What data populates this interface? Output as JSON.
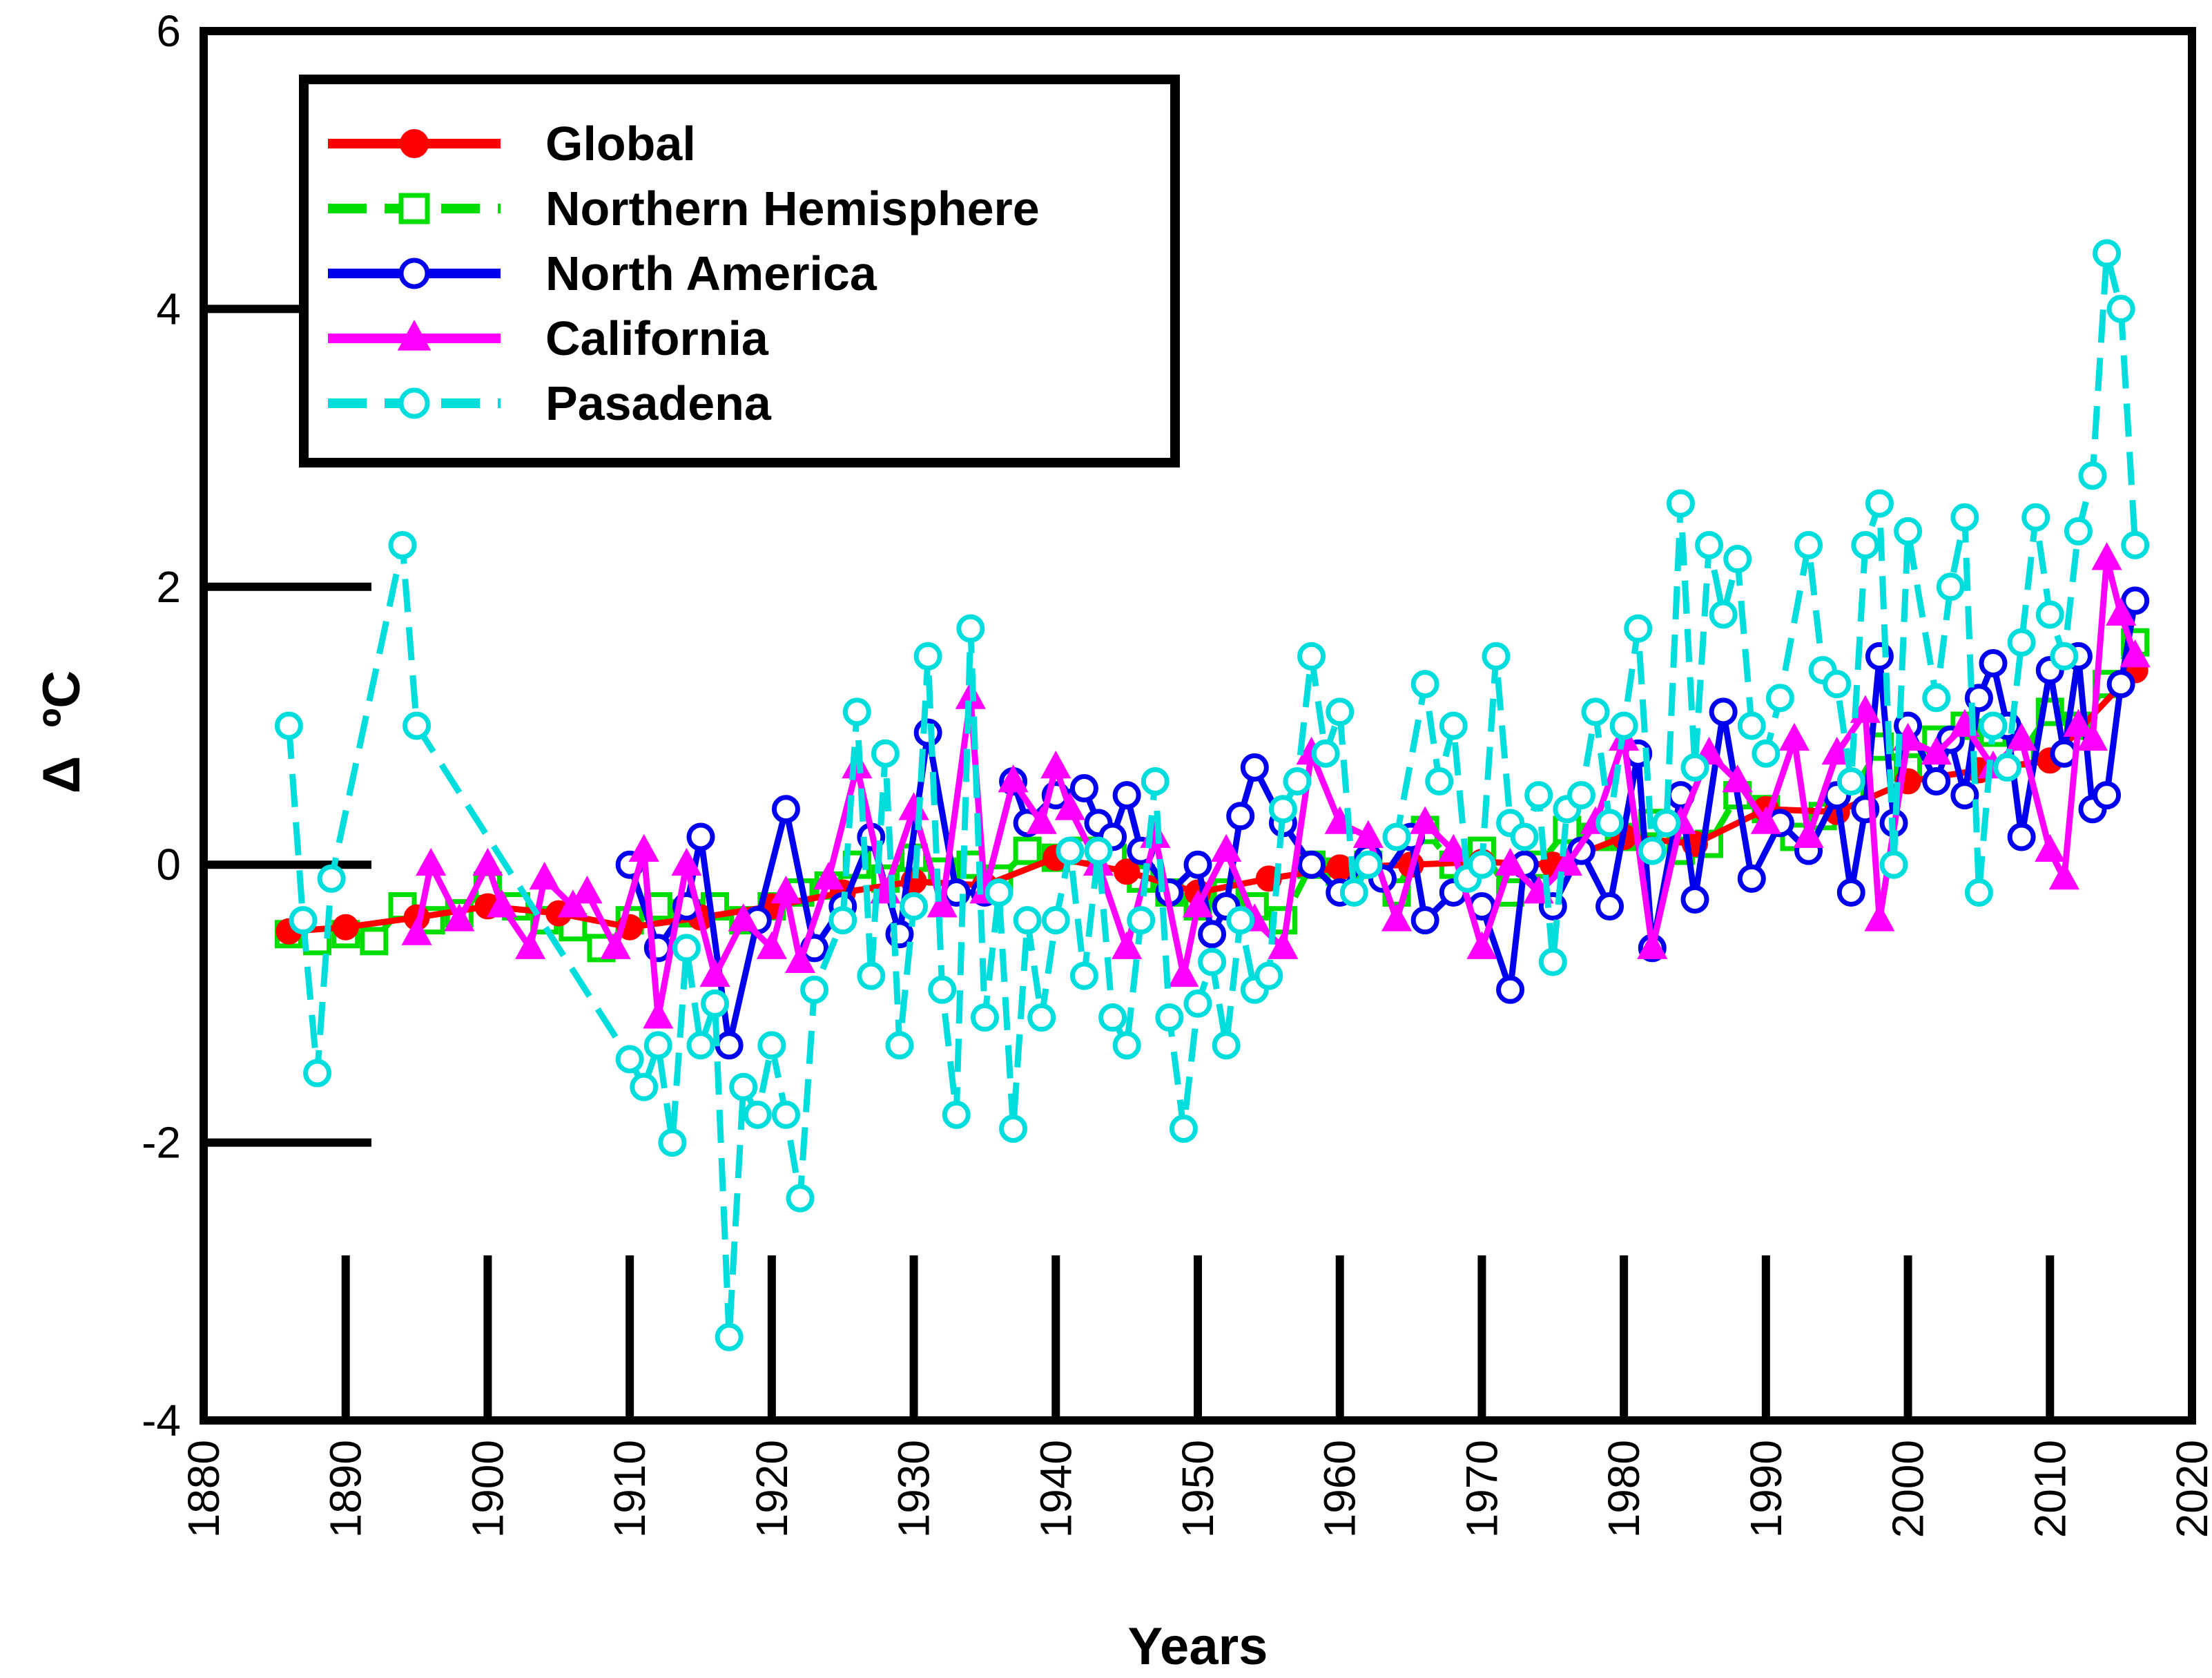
{
  "chart_data": {
    "type": "line",
    "title": "",
    "xlabel": "Years",
    "ylabel": "Δ ºC",
    "ylabel_main": "Δ",
    "ylabel_unit": "ºC",
    "xlim": [
      1880,
      2020
    ],
    "ylim": [
      -4,
      6
    ],
    "xticks": [
      1880,
      1890,
      1900,
      1910,
      1920,
      1930,
      1940,
      1950,
      1960,
      1970,
      1980,
      1990,
      2000,
      2010,
      2020
    ],
    "yticks": [
      -4,
      -2,
      0,
      2,
      4,
      6
    ],
    "grid": false,
    "legend_position": "top-left",
    "series": [
      {
        "name": "Global",
        "color": "#ff0000",
        "marker": "filled-circle",
        "dash": "solid",
        "x": [
          1886,
          1890,
          1895,
          1900,
          1905,
          1910,
          1915,
          1920,
          1925,
          1930,
          1935,
          1940,
          1945,
          1950,
          1955,
          1960,
          1965,
          1970,
          1975,
          1980,
          1985,
          1990,
          1995,
          2000,
          2005,
          2010,
          2016
        ],
        "y": [
          -0.48,
          -0.45,
          -0.38,
          -0.3,
          -0.35,
          -0.45,
          -0.38,
          -0.3,
          -0.2,
          -0.12,
          -0.15,
          0.05,
          -0.05,
          -0.2,
          -0.1,
          -0.02,
          0.0,
          0.02,
          0.0,
          0.2,
          0.15,
          0.4,
          0.38,
          0.6,
          0.68,
          0.75,
          1.4
        ]
      },
      {
        "name": "Northern Hemisphere",
        "color": "#00dd00",
        "marker": "open-square",
        "dash": "dashed",
        "x": [
          1886,
          1888,
          1890,
          1892,
          1894,
          1896,
          1898,
          1900,
          1902,
          1904,
          1906,
          1908,
          1910,
          1912,
          1914,
          1916,
          1918,
          1920,
          1922,
          1924,
          1926,
          1928,
          1930,
          1932,
          1934,
          1936,
          1938,
          1940,
          1942,
          1944,
          1946,
          1948,
          1950,
          1952,
          1954,
          1956,
          1958,
          1960,
          1962,
          1964,
          1966,
          1968,
          1970,
          1972,
          1974,
          1976,
          1978,
          1980,
          1982,
          1984,
          1986,
          1988,
          1990,
          1992,
          1994,
          1996,
          1998,
          2000,
          2002,
          2004,
          2006,
          2008,
          2010,
          2012,
          2014,
          2016
        ],
        "y": [
          -0.5,
          -0.55,
          -0.5,
          -0.55,
          -0.3,
          -0.4,
          -0.35,
          -0.15,
          -0.3,
          -0.4,
          -0.45,
          -0.6,
          -0.4,
          -0.3,
          -0.35,
          -0.3,
          -0.4,
          -0.3,
          -0.2,
          -0.15,
          0.0,
          -0.1,
          0.05,
          -0.05,
          0.0,
          -0.1,
          0.1,
          0.05,
          0.1,
          0.05,
          -0.1,
          -0.2,
          -0.3,
          -0.2,
          -0.3,
          -0.4,
          0.0,
          -0.05,
          0.0,
          -0.2,
          0.25,
          0.0,
          0.1,
          -0.2,
          0.0,
          0.25,
          0.2,
          0.2,
          0.3,
          0.1,
          0.15,
          0.5,
          0.4,
          0.2,
          0.35,
          0.5,
          0.85,
          0.7,
          0.9,
          1.0,
          0.95,
          0.8,
          1.1,
          1.0,
          1.3,
          1.6
        ]
      },
      {
        "name": "North America",
        "color": "#0000ee",
        "marker": "open-circle",
        "dash": "solid",
        "x": [
          1910,
          1912,
          1914,
          1915,
          1917,
          1919,
          1921,
          1923,
          1925,
          1927,
          1929,
          1931,
          1933,
          1935,
          1937,
          1938,
          1940,
          1942,
          1943,
          1944,
          1945,
          1946,
          1948,
          1950,
          1951,
          1952,
          1953,
          1954,
          1956,
          1958,
          1960,
          1962,
          1963,
          1965,
          1966,
          1968,
          1970,
          1972,
          1973,
          1975,
          1977,
          1979,
          1981,
          1982,
          1984,
          1985,
          1987,
          1989,
          1991,
          1993,
          1995,
          1996,
          1997,
          1998,
          1999,
          2000,
          2002,
          2003,
          2004,
          2005,
          2006,
          2007,
          2008,
          2010,
          2011,
          2012,
          2013,
          2014,
          2015,
          2016
        ],
        "y": [
          0.0,
          -0.6,
          -0.3,
          0.2,
          -1.3,
          -0.4,
          0.4,
          -0.6,
          -0.3,
          0.2,
          -0.5,
          0.95,
          -0.2,
          -0.2,
          0.6,
          0.3,
          0.5,
          0.55,
          0.3,
          0.2,
          0.5,
          0.1,
          -0.2,
          0.0,
          -0.5,
          -0.3,
          0.35,
          0.7,
          0.3,
          0.0,
          -0.2,
          0.05,
          -0.1,
          0.2,
          -0.4,
          -0.2,
          -0.3,
          -0.9,
          0.0,
          -0.3,
          0.1,
          -0.3,
          0.8,
          -0.6,
          0.5,
          -0.25,
          1.1,
          -0.1,
          0.3,
          0.1,
          0.5,
          -0.2,
          0.4,
          1.5,
          0.3,
          1.0,
          0.6,
          0.9,
          0.5,
          1.2,
          1.45,
          1.0,
          0.2,
          1.4,
          0.8,
          1.5,
          0.4,
          0.5,
          1.3,
          1.9
        ]
      },
      {
        "name": "California",
        "color": "#ff00ff",
        "marker": "filled-triangle",
        "dash": "solid",
        "x": [
          1895,
          1896,
          1898,
          1900,
          1901,
          1903,
          1904,
          1906,
          1907,
          1909,
          1911,
          1912,
          1914,
          1916,
          1918,
          1920,
          1921,
          1922,
          1924,
          1926,
          1928,
          1930,
          1932,
          1934,
          1935,
          1937,
          1939,
          1940,
          1941,
          1943,
          1945,
          1947,
          1949,
          1950,
          1952,
          1954,
          1956,
          1958,
          1960,
          1962,
          1964,
          1966,
          1968,
          1970,
          1972,
          1974,
          1976,
          1978,
          1980,
          1982,
          1984,
          1986,
          1988,
          1990,
          1992,
          1993,
          1995,
          1997,
          1998,
          2000,
          2002,
          2004,
          2006,
          2008,
          2010,
          2011,
          2012,
          2013,
          2014,
          2015,
          2016
        ],
        "y": [
          -0.5,
          0.0,
          -0.4,
          0.0,
          -0.3,
          -0.6,
          -0.1,
          -0.3,
          -0.2,
          -0.6,
          0.1,
          -1.1,
          0.0,
          -0.8,
          -0.4,
          -0.6,
          -0.2,
          -0.7,
          -0.1,
          0.7,
          -0.2,
          0.4,
          -0.3,
          1.2,
          -0.2,
          0.6,
          0.3,
          0.7,
          0.4,
          0.0,
          -0.6,
          0.2,
          -0.8,
          -0.3,
          0.1,
          -0.4,
          -0.6,
          0.8,
          0.3,
          0.2,
          -0.4,
          0.3,
          0.1,
          -0.6,
          0.0,
          -0.2,
          0.0,
          0.3,
          0.9,
          -0.6,
          0.3,
          0.8,
          0.6,
          0.3,
          0.9,
          0.2,
          0.8,
          1.1,
          -0.4,
          0.9,
          0.8,
          1.0,
          0.7,
          0.9,
          0.1,
          -0.1,
          1.0,
          0.9,
          2.2,
          1.8,
          1.5
        ]
      },
      {
        "name": "Pasadena",
        "color": "#00dddd",
        "marker": "open-circle",
        "dash": "dashed",
        "x": [
          1886,
          1887,
          1888,
          1889,
          1894,
          1895,
          1910,
          1911,
          1912,
          1913,
          1914,
          1915,
          1916,
          1917,
          1918,
          1919,
          1920,
          1921,
          1922,
          1923,
          1925,
          1926,
          1927,
          1928,
          1929,
          1930,
          1931,
          1932,
          1933,
          1934,
          1935,
          1936,
          1937,
          1938,
          1939,
          1940,
          1941,
          1942,
          1943,
          1944,
          1945,
          1946,
          1947,
          1948,
          1949,
          1950,
          1951,
          1952,
          1953,
          1954,
          1955,
          1956,
          1957,
          1958,
          1959,
          1960,
          1961,
          1962,
          1964,
          1966,
          1967,
          1968,
          1969,
          1970,
          1971,
          1972,
          1973,
          1974,
          1975,
          1976,
          1977,
          1978,
          1979,
          1980,
          1981,
          1982,
          1983,
          1984,
          1985,
          1986,
          1987,
          1988,
          1989,
          1990,
          1991,
          1993,
          1994,
          1995,
          1996,
          1997,
          1998,
          1999,
          2000,
          2002,
          2003,
          2004,
          2005,
          2006,
          2007,
          2008,
          2009,
          2010,
          2011,
          2012,
          2013,
          2014,
          2015,
          2016
        ],
        "y": [
          1.0,
          -0.4,
          -1.5,
          -0.1,
          2.3,
          1.0,
          -1.4,
          -1.6,
          -1.3,
          -2.0,
          -0.6,
          -1.3,
          -1.0,
          -3.4,
          -1.6,
          -1.8,
          -1.3,
          -1.8,
          -2.4,
          -0.9,
          -0.4,
          1.1,
          -0.8,
          0.8,
          -1.3,
          -0.3,
          1.5,
          -0.9,
          -1.8,
          1.7,
          -1.1,
          -0.2,
          -1.9,
          -0.4,
          -1.1,
          -0.4,
          0.1,
          -0.8,
          0.1,
          -1.1,
          -1.3,
          -0.4,
          0.6,
          -1.1,
          -1.9,
          -1.0,
          -0.7,
          -1.3,
          -0.4,
          -0.9,
          -0.8,
          0.4,
          0.6,
          1.5,
          0.8,
          1.1,
          -0.2,
          0.0,
          0.2,
          1.3,
          0.6,
          1.0,
          -0.1,
          0.0,
          1.5,
          0.3,
          0.2,
          0.5,
          -0.7,
          0.4,
          0.5,
          1.1,
          0.3,
          1.0,
          1.7,
          0.1,
          0.3,
          2.6,
          0.7,
          2.3,
          1.8,
          2.2,
          1.0,
          0.8,
          1.2,
          2.3,
          1.4,
          1.3,
          0.6,
          2.3,
          2.6,
          0.0,
          2.4,
          1.2,
          2.0,
          2.5,
          -0.2,
          1.0,
          0.7,
          1.6,
          2.5,
          1.8,
          1.5,
          2.4,
          2.8,
          4.4,
          4.0,
          2.3
        ]
      }
    ]
  }
}
